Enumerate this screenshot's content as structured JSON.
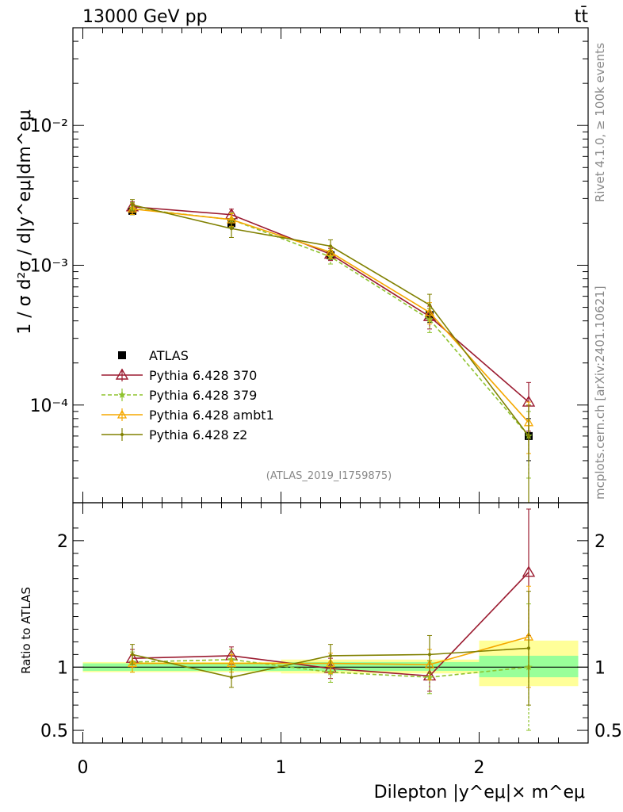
{
  "header": {
    "left": "13000 GeV pp",
    "right": "tt̄"
  },
  "side_labels": {
    "rivet": "Rivet 4.1.0, ≥ 100k events",
    "mcplots": "mcplots.cern.ch [arXiv:2401.10621]"
  },
  "watermark": "(ATLAS_2019_I1759875)",
  "colors": {
    "data": "#000000",
    "p370": "#9b1b30",
    "p379": "#8fc32f",
    "ambt1": "#f5a800",
    "z2": "#808000",
    "band_inner": "#99ff99",
    "band_outer": "#ffff99"
  },
  "chart_data": [
    {
      "type": "line",
      "panel": "main",
      "ylabel": "1 / σ  d²σ / d|y^eμ|dm^eμ",
      "yscale": "log",
      "ylim": [
        2e-05,
        0.05
      ],
      "xlim": [
        -0.05,
        2.55
      ],
      "y_ticks": [
        {
          "value": 0.01,
          "label": "10⁻²"
        },
        {
          "value": 0.001,
          "label": "10⁻³"
        },
        {
          "value": 0.0001,
          "label": "10⁻⁴"
        }
      ],
      "x": [
        0.25,
        0.75,
        1.25,
        1.75,
        2.25
      ],
      "series": [
        {
          "name": "ATLAS",
          "key": "data",
          "values": [
            0.00245,
            0.002,
            0.00118,
            0.00044,
            6e-05
          ],
          "err": [
            0.00015,
            0.00015,
            8e-05,
            5e-05,
            2e-05
          ]
        },
        {
          "name": "Pythia 6.428 370",
          "key": "p370",
          "values": [
            0.00262,
            0.0023,
            0.0012,
            0.00043,
            0.000105
          ],
          "err": [
            0.00022,
            0.00022,
            0.00012,
            8e-05,
            4e-05
          ]
        },
        {
          "name": "Pythia 6.428 379",
          "key": "p379",
          "values": [
            0.00255,
            0.00212,
            0.00115,
            0.00041,
            6e-05
          ],
          "err": [
            0.00025,
            0.00025,
            0.00013,
            8e-05,
            3e-05
          ]
        },
        {
          "name": "Pythia 6.428 ambt1",
          "key": "ambt1",
          "values": [
            0.00253,
            0.00212,
            0.00124,
            0.00046,
            7.5e-05
          ],
          "err": [
            0.00022,
            0.00022,
            0.00012,
            8e-05,
            3e-05
          ]
        },
        {
          "name": "Pythia 6.428 z2",
          "key": "z2",
          "values": [
            0.0027,
            0.00183,
            0.00137,
            0.00052,
            6e-05
          ],
          "err": [
            0.00025,
            0.00025,
            0.00015,
            0.0001,
            4e-05
          ]
        }
      ]
    },
    {
      "type": "line",
      "panel": "ratio",
      "ylabel": "Ratio to ATLAS",
      "xlabel": "Dilepton |y^eμ|× m^eμ",
      "ylim": [
        0.4,
        2.3
      ],
      "xlim": [
        -0.05,
        2.55
      ],
      "x_ticks": [
        {
          "value": 0,
          "label": "0"
        },
        {
          "value": 1,
          "label": "1"
        },
        {
          "value": 2,
          "label": "2"
        }
      ],
      "y_ticks": [
        {
          "value": 0.5,
          "label": "0.5"
        },
        {
          "value": 1,
          "label": "1"
        },
        {
          "value": 2,
          "label": "2"
        }
      ],
      "bands": [
        {
          "x": [
            0.0,
            1.0
          ],
          "inner": [
            0.97,
            1.03
          ],
          "outer": [
            0.96,
            1.04
          ]
        },
        {
          "x": [
            1.0,
            2.0
          ],
          "inner": [
            0.97,
            1.04
          ],
          "outer": [
            0.95,
            1.06
          ]
        },
        {
          "x": [
            2.0,
            2.5
          ],
          "inner": [
            0.92,
            1.09
          ],
          "outer": [
            0.85,
            1.21
          ]
        }
      ],
      "x": [
        0.25,
        0.75,
        1.25,
        1.75,
        2.25
      ],
      "series": [
        {
          "name": "Pythia 6.428 370",
          "key": "p370",
          "values": [
            1.07,
            1.09,
            0.99,
            0.93,
            1.75
          ],
          "err": [
            0.07,
            0.07,
            0.08,
            0.12,
            0.5
          ]
        },
        {
          "name": "Pythia 6.428 379",
          "key": "p379",
          "values": [
            1.04,
            1.06,
            0.96,
            0.92,
            1.0
          ],
          "err": [
            0.08,
            0.08,
            0.08,
            0.13,
            0.5
          ]
        },
        {
          "name": "Pythia 6.428 ambt1",
          "key": "ambt1",
          "values": [
            1.03,
            1.03,
            1.03,
            1.02,
            1.24
          ],
          "err": [
            0.07,
            0.07,
            0.08,
            0.12,
            0.4
          ]
        },
        {
          "name": "Pythia 6.428 z2",
          "key": "z2",
          "values": [
            1.1,
            0.92,
            1.09,
            1.1,
            1.15
          ],
          "err": [
            0.08,
            0.08,
            0.09,
            0.15,
            0.45
          ]
        }
      ]
    }
  ]
}
